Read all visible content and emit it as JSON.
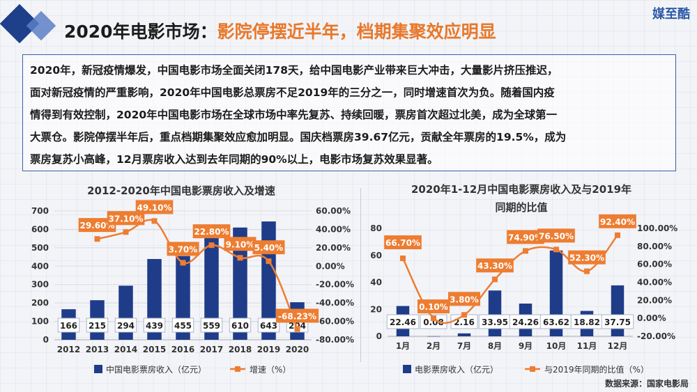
{
  "header": {
    "title_part1": "2020年电影市场：",
    "title_part2": "影院停摆近半年，档期集聚效应明显",
    "brand": "媒至酷"
  },
  "summary": {
    "lines": [
      "2020年，新冠疫情爆发，中国电影市场全面关闭178天，给中国电影产业带来巨大冲击，大量影片挤压推迟，",
      "面对新冠疫情的严重影响，2020年中国电影总票房不足2019年的三分之一，同时增速首次为负。随着国内疫",
      "情得到有效控制，2020年中国电影市场在全球市场中率先复苏、持续回暖，票房首次超过北美，成为全球第一",
      "大票仓。影院停摆半年后，重点档期集聚效应愈加明显。国庆档票房39.67亿元，贡献全年票房的19.5%，成为",
      "票房复苏小高峰，12月票房收入达到去年同期的90%以上，电影市场复苏效果显著。"
    ]
  },
  "source": "数据来源：国家电影局",
  "colors": {
    "bar": "#1f3c88",
    "line": "#ed7d31",
    "accent": "#e8782a"
  },
  "chart_data": [
    {
      "type": "bar",
      "title": "2012-2020年中国电影票房收入及增速",
      "categories": [
        "2012",
        "2013",
        "2014",
        "2015",
        "2016",
        "2017",
        "2018",
        "2019",
        "2020"
      ],
      "series": [
        {
          "name": "中国电影票房收入（亿元）",
          "type": "bar",
          "axis": "left",
          "values": [
            166,
            215,
            294,
            439,
            455,
            559,
            610,
            643,
            204
          ],
          "labels": [
            "166",
            "215",
            "294",
            "439",
            "455",
            "559",
            "610",
            "643",
            "204"
          ]
        },
        {
          "name": "增速（%）",
          "type": "line",
          "axis": "right",
          "values": [
            null,
            29.6,
            37.1,
            49.1,
            3.7,
            22.8,
            9.1,
            5.4,
            -68.23
          ],
          "labels": [
            null,
            "29.60%",
            "37.10%",
            "49.10%",
            "3.70%",
            "22.80%",
            "9.10%",
            "5.40%",
            "-68.23%"
          ]
        }
      ],
      "left_axis": {
        "min": 0,
        "max": 700,
        "ticks": [
          "0",
          "100",
          "200",
          "300",
          "400",
          "500",
          "600",
          "700"
        ]
      },
      "right_axis": {
        "min": -80,
        "max": 60,
        "ticks": [
          "-80.00%",
          "-60.00%",
          "-40.00%",
          "-20.00%",
          "0.00%",
          "20.00%",
          "40.00%",
          "60.00%"
        ]
      },
      "grid": true,
      "legend_position": "bottom"
    },
    {
      "type": "bar",
      "title": "2020年1-12月中国电影票房收入及与2019年同期的比值",
      "title_lines": [
        "2020年1-12月中国电影票房收入及与2019年",
        "同期的比值"
      ],
      "categories": [
        "1月",
        "2月",
        "7月",
        "8月",
        "9月",
        "10月",
        "11月",
        "12月"
      ],
      "series": [
        {
          "name": "电影票房收入（亿元）",
          "type": "bar",
          "axis": "left",
          "values": [
            22.46,
            0.08,
            2.16,
            33.95,
            24.26,
            63.62,
            18.82,
            37.75
          ],
          "labels": [
            "22.46",
            "0.08",
            "2.16",
            "33.95",
            "24.26",
            "63.62",
            "18.82",
            "37.75"
          ]
        },
        {
          "name": "与2019年同期的比值（%）",
          "type": "line",
          "axis": "right",
          "values": [
            66.7,
            0.1,
            3.8,
            43.3,
            74.9,
            76.5,
            52.3,
            92.4
          ],
          "labels": [
            "66.70%",
            "0.10%",
            "3.80%",
            "43.30%",
            "74.90%",
            "76.50%",
            "52.30%",
            "92.40%"
          ]
        }
      ],
      "left_axis": {
        "min": 0,
        "max": 80,
        "ticks": [
          "0",
          "20",
          "40",
          "60",
          "80"
        ]
      },
      "right_axis": {
        "min": -20,
        "max": 100,
        "ticks": [
          "-20.00%",
          "0.00%",
          "20.00%",
          "40.00%",
          "60.00%",
          "80.00%",
          "100.00%"
        ]
      },
      "grid": false,
      "legend_position": "bottom"
    }
  ]
}
